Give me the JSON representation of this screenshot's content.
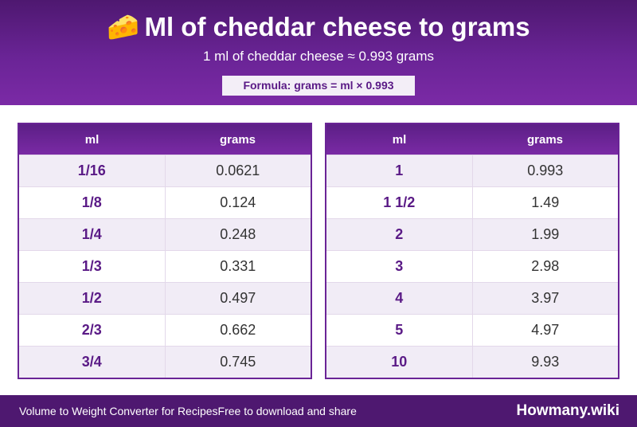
{
  "header": {
    "emoji": "🧀",
    "title": "Ml of cheddar cheese to grams",
    "subtitle": "1 ml of cheddar cheese ≈ 0.993 grams",
    "formula": "Formula: grams = ml × 0.993"
  },
  "tables": [
    {
      "headers": [
        "ml",
        "grams"
      ],
      "rows": [
        [
          "1/16",
          "0.0621"
        ],
        [
          "1/8",
          "0.124"
        ],
        [
          "1/4",
          "0.248"
        ],
        [
          "1/3",
          "0.331"
        ],
        [
          "1/2",
          "0.497"
        ],
        [
          "2/3",
          "0.662"
        ],
        [
          "3/4",
          "0.745"
        ]
      ]
    },
    {
      "headers": [
        "ml",
        "grams"
      ],
      "rows": [
        [
          "1",
          "0.993"
        ],
        [
          "1 1/2",
          "1.49"
        ],
        [
          "2",
          "1.99"
        ],
        [
          "3",
          "2.98"
        ],
        [
          "4",
          "3.97"
        ],
        [
          "5",
          "4.97"
        ],
        [
          "10",
          "9.93"
        ]
      ]
    }
  ],
  "footer": {
    "description": "Volume to Weight Converter for RecipesFree to download and share",
    "brand": "Howmany.wiki"
  },
  "colors": {
    "accent": "#6a2496",
    "dark_purple": "#4e1870",
    "row_alt": "#f1ecf6"
  }
}
